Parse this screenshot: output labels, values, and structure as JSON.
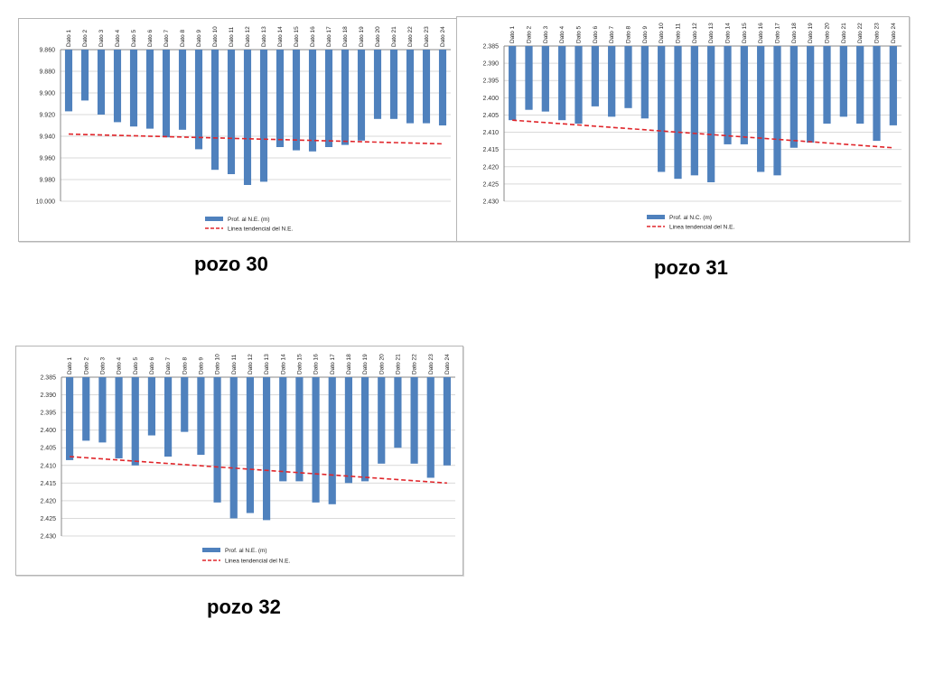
{
  "colors": {
    "bar": "#4f81bd",
    "trend": "#e0262b",
    "grid": "#d9d9d9",
    "axis": "#888888"
  },
  "chart_data": [
    {
      "type": "bar",
      "caption": "pozo 30",
      "categories": [
        "Dato 1",
        "Dato 2",
        "Dato 3",
        "Dato 4",
        "Dato 5",
        "Dato 6",
        "Dato 7",
        "Dato 8",
        "Dato 9",
        "Dato 10",
        "Dato 11",
        "Dato 12",
        "Dato 13",
        "Dato 14",
        "Dato 15",
        "Dato 16",
        "Dato 17",
        "Dato 18",
        "Dato 19",
        "Dato 20",
        "Dato 21",
        "Dato 22",
        "Dato 23",
        "Dato 24"
      ],
      "yaxis": {
        "min": 9.86,
        "max": 10.0,
        "step": 0.02,
        "decimals": 3,
        "inverted": true,
        "ticks": [
          "9.860",
          "9.880",
          "9.900",
          "9.920",
          "9.940",
          "9.960",
          "9.980",
          "10.000"
        ]
      },
      "series": [
        {
          "name": "Prof. al N.E. (m)",
          "kind": "bar",
          "values": [
            9.917,
            9.907,
            9.92,
            9.927,
            9.931,
            9.933,
            9.941,
            9.934,
            9.952,
            9.971,
            9.975,
            9.985,
            9.982,
            9.95,
            9.953,
            9.954,
            9.95,
            9.948,
            9.944,
            9.924,
            9.924,
            9.928,
            9.928,
            9.93
          ]
        },
        {
          "name": "Linea tendencial del N.E.",
          "kind": "trendline",
          "start": 9.938,
          "end": 9.947
        }
      ],
      "legend": "bottom"
    },
    {
      "type": "bar",
      "caption": "pozo 31",
      "categories": [
        "Dato 1",
        "Dato 2",
        "Dato 3",
        "Dato 4",
        "Dato 5",
        "Dato 6",
        "Dato 7",
        "Dato 8",
        "Dato 9",
        "Dato 10",
        "Dato 11",
        "Dato 12",
        "Dato 13",
        "Dato 14",
        "Dato 15",
        "Dato 16",
        "Dato 17",
        "Dato 18",
        "Dato 19",
        "Dato 20",
        "Dato 21",
        "Dato 22",
        "Dato 23",
        "Dato 24"
      ],
      "yaxis": {
        "min": 2.385,
        "max": 2.43,
        "step": 0.005,
        "decimals": 3,
        "inverted": true,
        "ticks": [
          "2.385",
          "2.390",
          "2.395",
          "2.400",
          "2.405",
          "2.410",
          "2.415",
          "2.420",
          "2.425",
          "2.430"
        ]
      },
      "series": [
        {
          "name": "Prof. al N.C. (m)",
          "kind": "bar",
          "values": [
            2.4065,
            2.4035,
            2.404,
            2.4065,
            2.4075,
            2.4025,
            2.4055,
            2.403,
            2.406,
            2.4215,
            2.4235,
            2.4225,
            2.4245,
            2.4135,
            2.4135,
            2.4215,
            2.4225,
            2.4145,
            2.413,
            2.4075,
            2.4055,
            2.4075,
            2.4125,
            2.408
          ]
        },
        {
          "name": "Linea tendencial del N.E.",
          "kind": "trendline",
          "start": 2.4065,
          "end": 2.4145
        }
      ],
      "legend": "bottom"
    },
    {
      "type": "bar",
      "caption": "pozo 32",
      "categories": [
        "Dato 1",
        "Dato 2",
        "Dato 3",
        "Dato 4",
        "Dato 5",
        "Dato 6",
        "Dato 7",
        "Dato 8",
        "Dato 9",
        "Dato 10",
        "Dato 11",
        "Dato 12",
        "Dato 13",
        "Dato 14",
        "Dato 15",
        "Dato 16",
        "Dato 17",
        "Dato 18",
        "Dato 19",
        "Dato 20",
        "Dato 21",
        "Dato 22",
        "Dato 23",
        "Dato 24"
      ],
      "yaxis": {
        "min": 2.385,
        "max": 2.43,
        "step": 0.005,
        "decimals": 3,
        "inverted": true,
        "ticks": [
          "2.385",
          "2.390",
          "2.395",
          "2.400",
          "2.405",
          "2.410",
          "2.415",
          "2.420",
          "2.425",
          "2.430"
        ]
      },
      "series": [
        {
          "name": "Prof. al N.E. (m)",
          "kind": "bar",
          "values": [
            2.4085,
            2.403,
            2.4035,
            2.408,
            2.41,
            2.4015,
            2.4075,
            2.4005,
            2.407,
            2.4205,
            2.425,
            2.4235,
            2.4255,
            2.4145,
            2.4145,
            2.4205,
            2.421,
            2.415,
            2.4145,
            2.4095,
            2.405,
            2.4095,
            2.4135,
            2.41
          ]
        },
        {
          "name": "Linea tendencial del N.E.",
          "kind": "trendline",
          "start": 2.4075,
          "end": 2.415
        }
      ],
      "legend": "bottom"
    }
  ]
}
